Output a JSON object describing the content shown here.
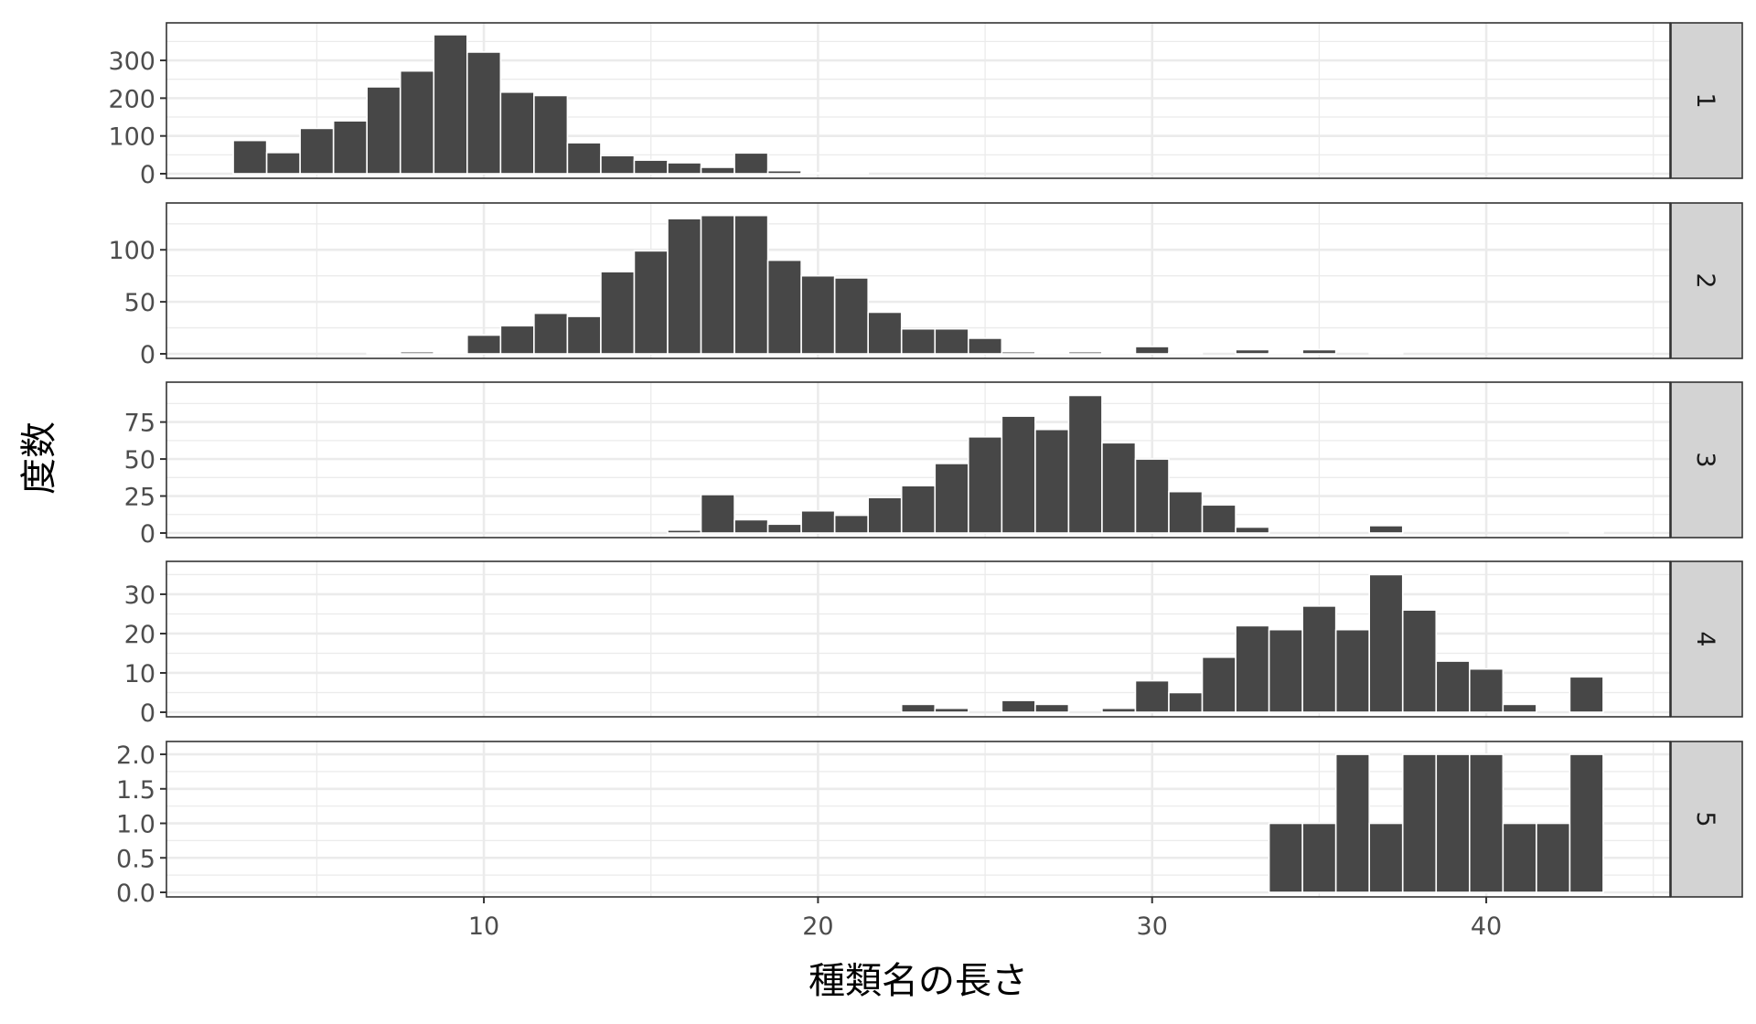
{
  "chart_data": {
    "type": "bar",
    "xlabel": "種類名の長さ",
    "ylabel": "度数",
    "xlim": [
      0.5,
      45.5
    ],
    "x_ticks": [
      10,
      20,
      30,
      40
    ],
    "grid": true,
    "facet_orientation": "horizontal-strips-right",
    "colors": {
      "bar": "#474747",
      "bar_edge": "#ffffff",
      "strip": "#d3d3d3",
      "grid": "#ebebeb",
      "border": "#333333"
    },
    "panels": [
      {
        "label": "1",
        "ylim": [
          0,
          380
        ],
        "y_ticks": [
          0,
          100,
          200,
          300
        ],
        "y_tick_labels": [
          "0",
          "100",
          "200",
          "300"
        ],
        "x": [
          3,
          4,
          5,
          6,
          7,
          8,
          9,
          10,
          11,
          12,
          13,
          14,
          15,
          16,
          17,
          18,
          19,
          20,
          21
        ],
        "values": [
          88,
          56,
          120,
          140,
          230,
          272,
          368,
          322,
          216,
          207,
          82,
          48,
          36,
          29,
          17,
          55,
          8,
          3,
          2
        ]
      },
      {
        "label": "2",
        "ylim": [
          0,
          138
        ],
        "y_ticks": [
          0,
          50,
          100
        ],
        "y_tick_labels": [
          "0",
          "50",
          "100"
        ],
        "x": [
          7,
          8,
          9,
          10,
          11,
          12,
          13,
          14,
          15,
          16,
          17,
          18,
          19,
          20,
          21,
          22,
          23,
          24,
          25,
          26,
          27,
          28,
          29,
          30,
          31,
          33,
          34,
          35,
          37
        ],
        "values": [
          1,
          2,
          1,
          18,
          27,
          39,
          36,
          79,
          99,
          130,
          133,
          133,
          90,
          75,
          73,
          40,
          24,
          24,
          15,
          2,
          1,
          2,
          1,
          7,
          1,
          4,
          1,
          4,
          1
        ]
      },
      {
        "label": "3",
        "ylim": [
          0,
          97
        ],
        "y_ticks": [
          0,
          25,
          50,
          75
        ],
        "y_tick_labels": [
          "0",
          "25",
          "50",
          "75"
        ],
        "x": [
          16,
          17,
          18,
          19,
          20,
          21,
          22,
          23,
          24,
          25,
          26,
          27,
          28,
          29,
          30,
          31,
          32,
          33,
          37,
          43
        ],
        "values": [
          2,
          26,
          9,
          6,
          15,
          12,
          24,
          32,
          47,
          65,
          79,
          70,
          93,
          61,
          50,
          28,
          19,
          4,
          5,
          1
        ]
      },
      {
        "label": "4",
        "ylim": [
          0,
          36.5
        ],
        "y_ticks": [
          0,
          10,
          20,
          30
        ],
        "y_tick_labels": [
          "0",
          "10",
          "20",
          "30"
        ],
        "x": [
          23,
          24,
          26,
          27,
          29,
          30,
          31,
          32,
          33,
          34,
          35,
          36,
          37,
          38,
          39,
          40,
          41,
          43
        ],
        "values": [
          2,
          1,
          3,
          2,
          1,
          8,
          5,
          14,
          22,
          21,
          27,
          21,
          35,
          26,
          13,
          11,
          2,
          9
        ]
      },
      {
        "label": "5",
        "ylim": [
          0,
          2.08
        ],
        "y_ticks": [
          0,
          0.5,
          1,
          1.5,
          2
        ],
        "y_tick_labels": [
          "0.0",
          "0.5",
          "1.0",
          "1.5",
          "2.0"
        ],
        "x": [
          34,
          35,
          36,
          37,
          38,
          39,
          40,
          41,
          42,
          43
        ],
        "values": [
          1,
          1,
          2,
          1,
          2,
          2,
          2,
          1,
          1,
          2
        ]
      }
    ]
  }
}
